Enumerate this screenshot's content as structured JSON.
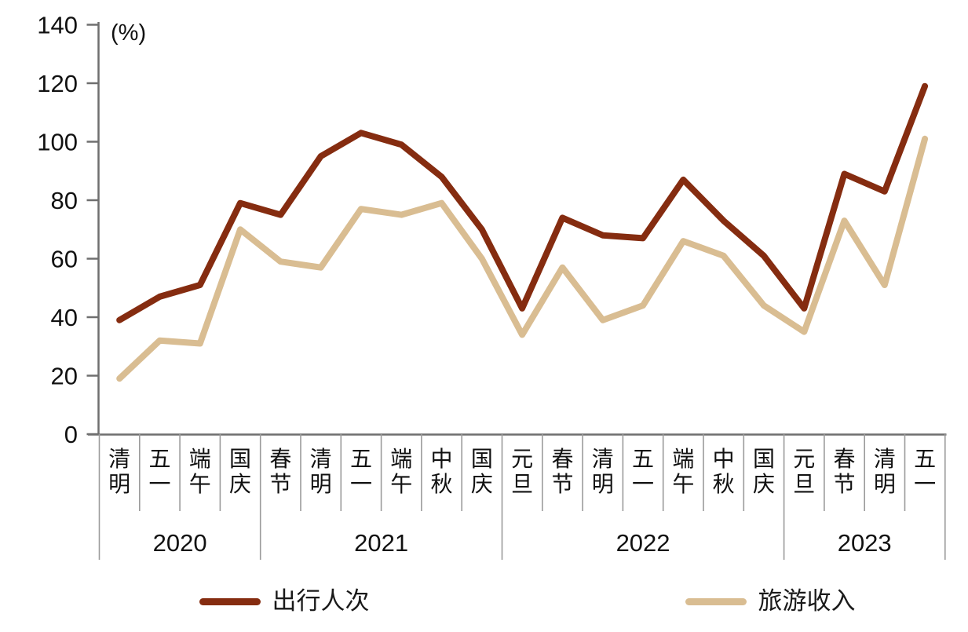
{
  "chart_data": {
    "type": "line",
    "title": "",
    "unit": "(%)",
    "xlabel": "",
    "ylabel": "(%)",
    "ylim": [
      0,
      140
    ],
    "ytick_step": 20,
    "yticks": [
      0,
      20,
      40,
      60,
      80,
      100,
      120,
      140
    ],
    "grid": false,
    "legend_position": "bottom",
    "categories": [
      "清明",
      "五一",
      "端午",
      "国庆",
      "春节",
      "清明",
      "五一",
      "端午",
      "中秋",
      "国庆",
      "元旦",
      "春节",
      "清明",
      "五一",
      "端午",
      "中秋",
      "国庆",
      "元旦",
      "春节",
      "清明",
      "五一"
    ],
    "year_groups": [
      {
        "label": "2020",
        "count": 4
      },
      {
        "label": "2021",
        "count": 6
      },
      {
        "label": "2022",
        "count": 7
      },
      {
        "label": "2023",
        "count": 4
      }
    ],
    "series": [
      {
        "name": "出行人次",
        "color": "#852c10",
        "values": [
          39,
          47,
          51,
          79,
          75,
          95,
          103,
          99,
          88,
          70,
          43,
          74,
          68,
          67,
          87,
          73,
          61,
          43,
          89,
          83,
          119
        ]
      },
      {
        "name": "旅游收入",
        "color": "#d9bd92",
        "values": [
          19,
          32,
          31,
          70,
          59,
          57,
          77,
          75,
          79,
          60,
          34,
          57,
          39,
          44,
          66,
          61,
          44,
          35,
          73,
          51,
          101
        ]
      }
    ]
  },
  "colors": {
    "axis": "#6f6f6f",
    "separator": "#9b9b9b",
    "text": "#1a1a1a"
  }
}
